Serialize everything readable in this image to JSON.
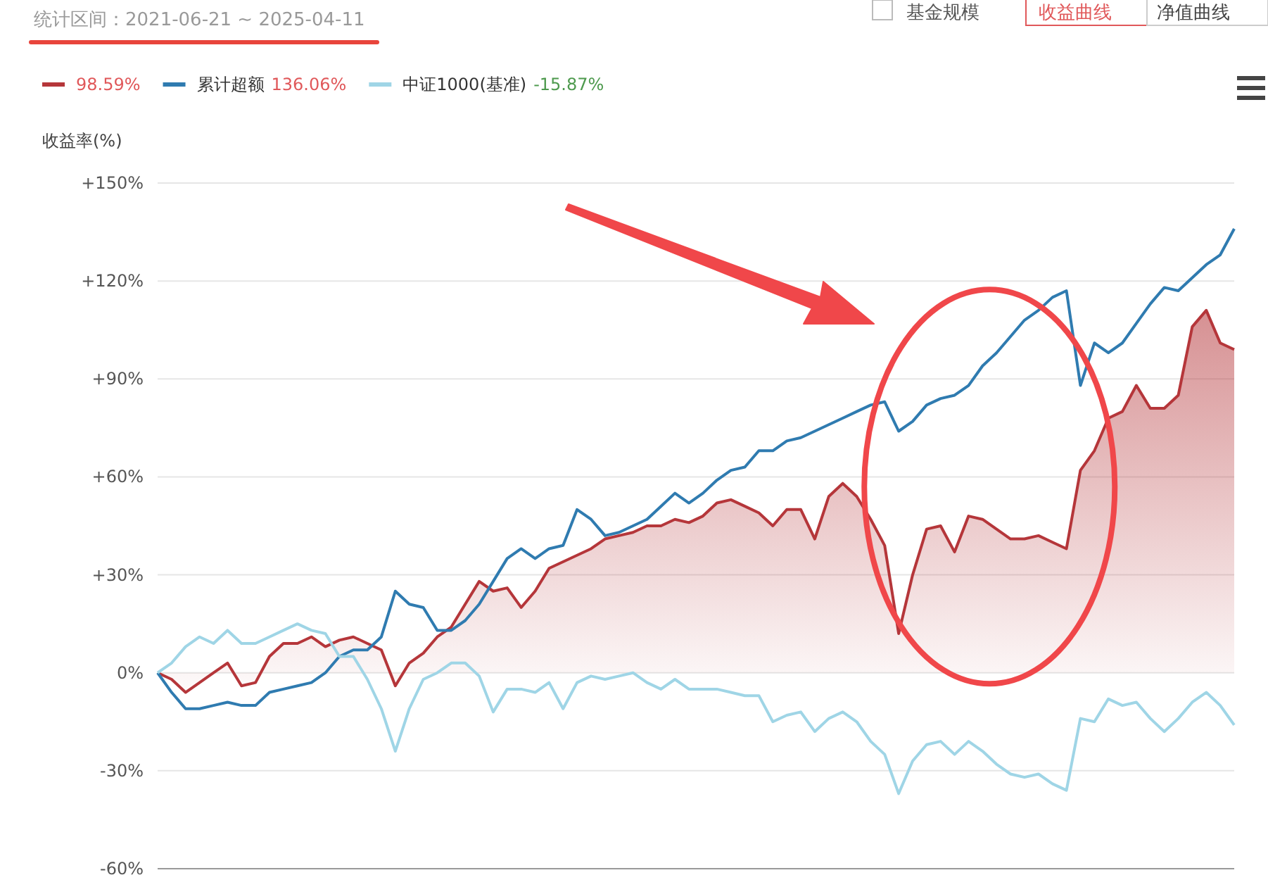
{
  "chart_data": {
    "type": "line",
    "title": "统计区间：2021-06-21 ~ 2025-04-11",
    "ylabel": "收益率(%)",
    "categories": [
      null,
      null,
      null,
      null,
      null,
      null,
      null,
      null,
      null,
      null,
      null,
      null,
      null,
      null,
      null,
      null,
      null,
      null,
      null,
      null,
      null,
      null,
      null,
      null,
      null,
      null,
      null,
      null,
      null,
      null,
      null,
      null,
      null,
      null,
      null,
      null,
      null,
      null,
      null,
      null,
      null,
      null,
      null,
      null,
      null,
      null,
      null,
      null,
      null,
      null,
      null,
      null,
      null,
      null,
      null,
      null,
      null,
      null,
      null,
      null,
      null,
      null,
      null,
      null,
      null,
      null,
      null,
      null,
      null,
      null,
      null,
      null,
      null,
      null,
      null,
      null,
      null,
      null
    ],
    "series": [
      {
        "type": "area",
        "color": "#b5363a",
        "values": [
          0,
          -2,
          -6,
          -3,
          0,
          3,
          -4,
          -3,
          5,
          9,
          9,
          11,
          8,
          10,
          11,
          9,
          7,
          -4,
          3,
          6,
          11,
          14,
          21,
          28,
          25,
          26,
          20,
          25,
          32,
          34,
          36,
          38,
          41,
          42,
          43,
          45,
          45,
          47,
          46,
          48,
          52,
          53,
          51,
          49,
          45,
          50,
          50,
          41,
          54,
          58,
          54,
          47,
          39,
          12,
          30,
          44,
          45,
          37,
          48,
          47,
          44,
          41,
          41,
          42,
          40,
          38,
          62,
          68,
          78,
          80,
          88,
          81,
          81,
          85,
          106,
          111,
          101,
          99
        ]
      },
      {
        "name": "累计超额",
        "color": "#2f7bb0",
        "values": [
          0,
          -6,
          -11,
          -11,
          -10,
          -9,
          -10,
          -10,
          -6,
          -5,
          -4,
          -3,
          0,
          5,
          7,
          7,
          11,
          25,
          21,
          20,
          13,
          13,
          16,
          21,
          28,
          35,
          38,
          35,
          38,
          39,
          50,
          47,
          42,
          43,
          45,
          47,
          51,
          55,
          52,
          55,
          59,
          62,
          63,
          68,
          68,
          71,
          72,
          74,
          76,
          78,
          80,
          82,
          83,
          74,
          77,
          82,
          84,
          85,
          88,
          94,
          98,
          103,
          108,
          111,
          115,
          117,
          88,
          101,
          98,
          101,
          107,
          113,
          118,
          117,
          121,
          125,
          128,
          136
        ]
      },
      {
        "name": "中证1000(基准)",
        "color": "#9fd5e6",
        "values": [
          0,
          3,
          8,
          11,
          9,
          13,
          9,
          9,
          11,
          13,
          15,
          13,
          12,
          5,
          5,
          -2,
          -11,
          -24,
          -11,
          -2,
          0,
          3,
          3,
          -1,
          -12,
          -5,
          -5,
          -6,
          -3,
          -11,
          -3,
          -1,
          -2,
          -1,
          0,
          -3,
          -5,
          -2,
          -5,
          -5,
          -5,
          -6,
          -7,
          -7,
          -15,
          -13,
          -12,
          -18,
          -14,
          -12,
          -15,
          -21,
          -25,
          -37,
          -27,
          -22,
          -21,
          -25,
          -21,
          -24,
          -28,
          -31,
          -32,
          -31,
          -34,
          -36,
          -14,
          -15,
          -8,
          -10,
          -9,
          -14,
          -18,
          -14,
          -9,
          -6,
          -10,
          -16
        ]
      }
    ],
    "ylim": [
      -60,
      150
    ],
    "yticks": [
      {
        "value": -60,
        "label": "-60%"
      },
      {
        "value": -30,
        "label": "-30%"
      },
      {
        "value": 0,
        "label": "0%"
      },
      {
        "value": 30,
        "label": "+30%"
      },
      {
        "value": 60,
        "label": "+60%"
      },
      {
        "value": 90,
        "label": "+90%"
      },
      {
        "value": 120,
        "label": "+120%"
      },
      {
        "value": 150,
        "label": "+150%"
      }
    ],
    "grid": "y",
    "legend": "top left",
    "tick_labels": "y",
    "annotations": [
      "基金规模",
      "收益曲线",
      "净值曲线",
      "98.59%",
      "136.06%",
      "-15.87%"
    ]
  }
}
